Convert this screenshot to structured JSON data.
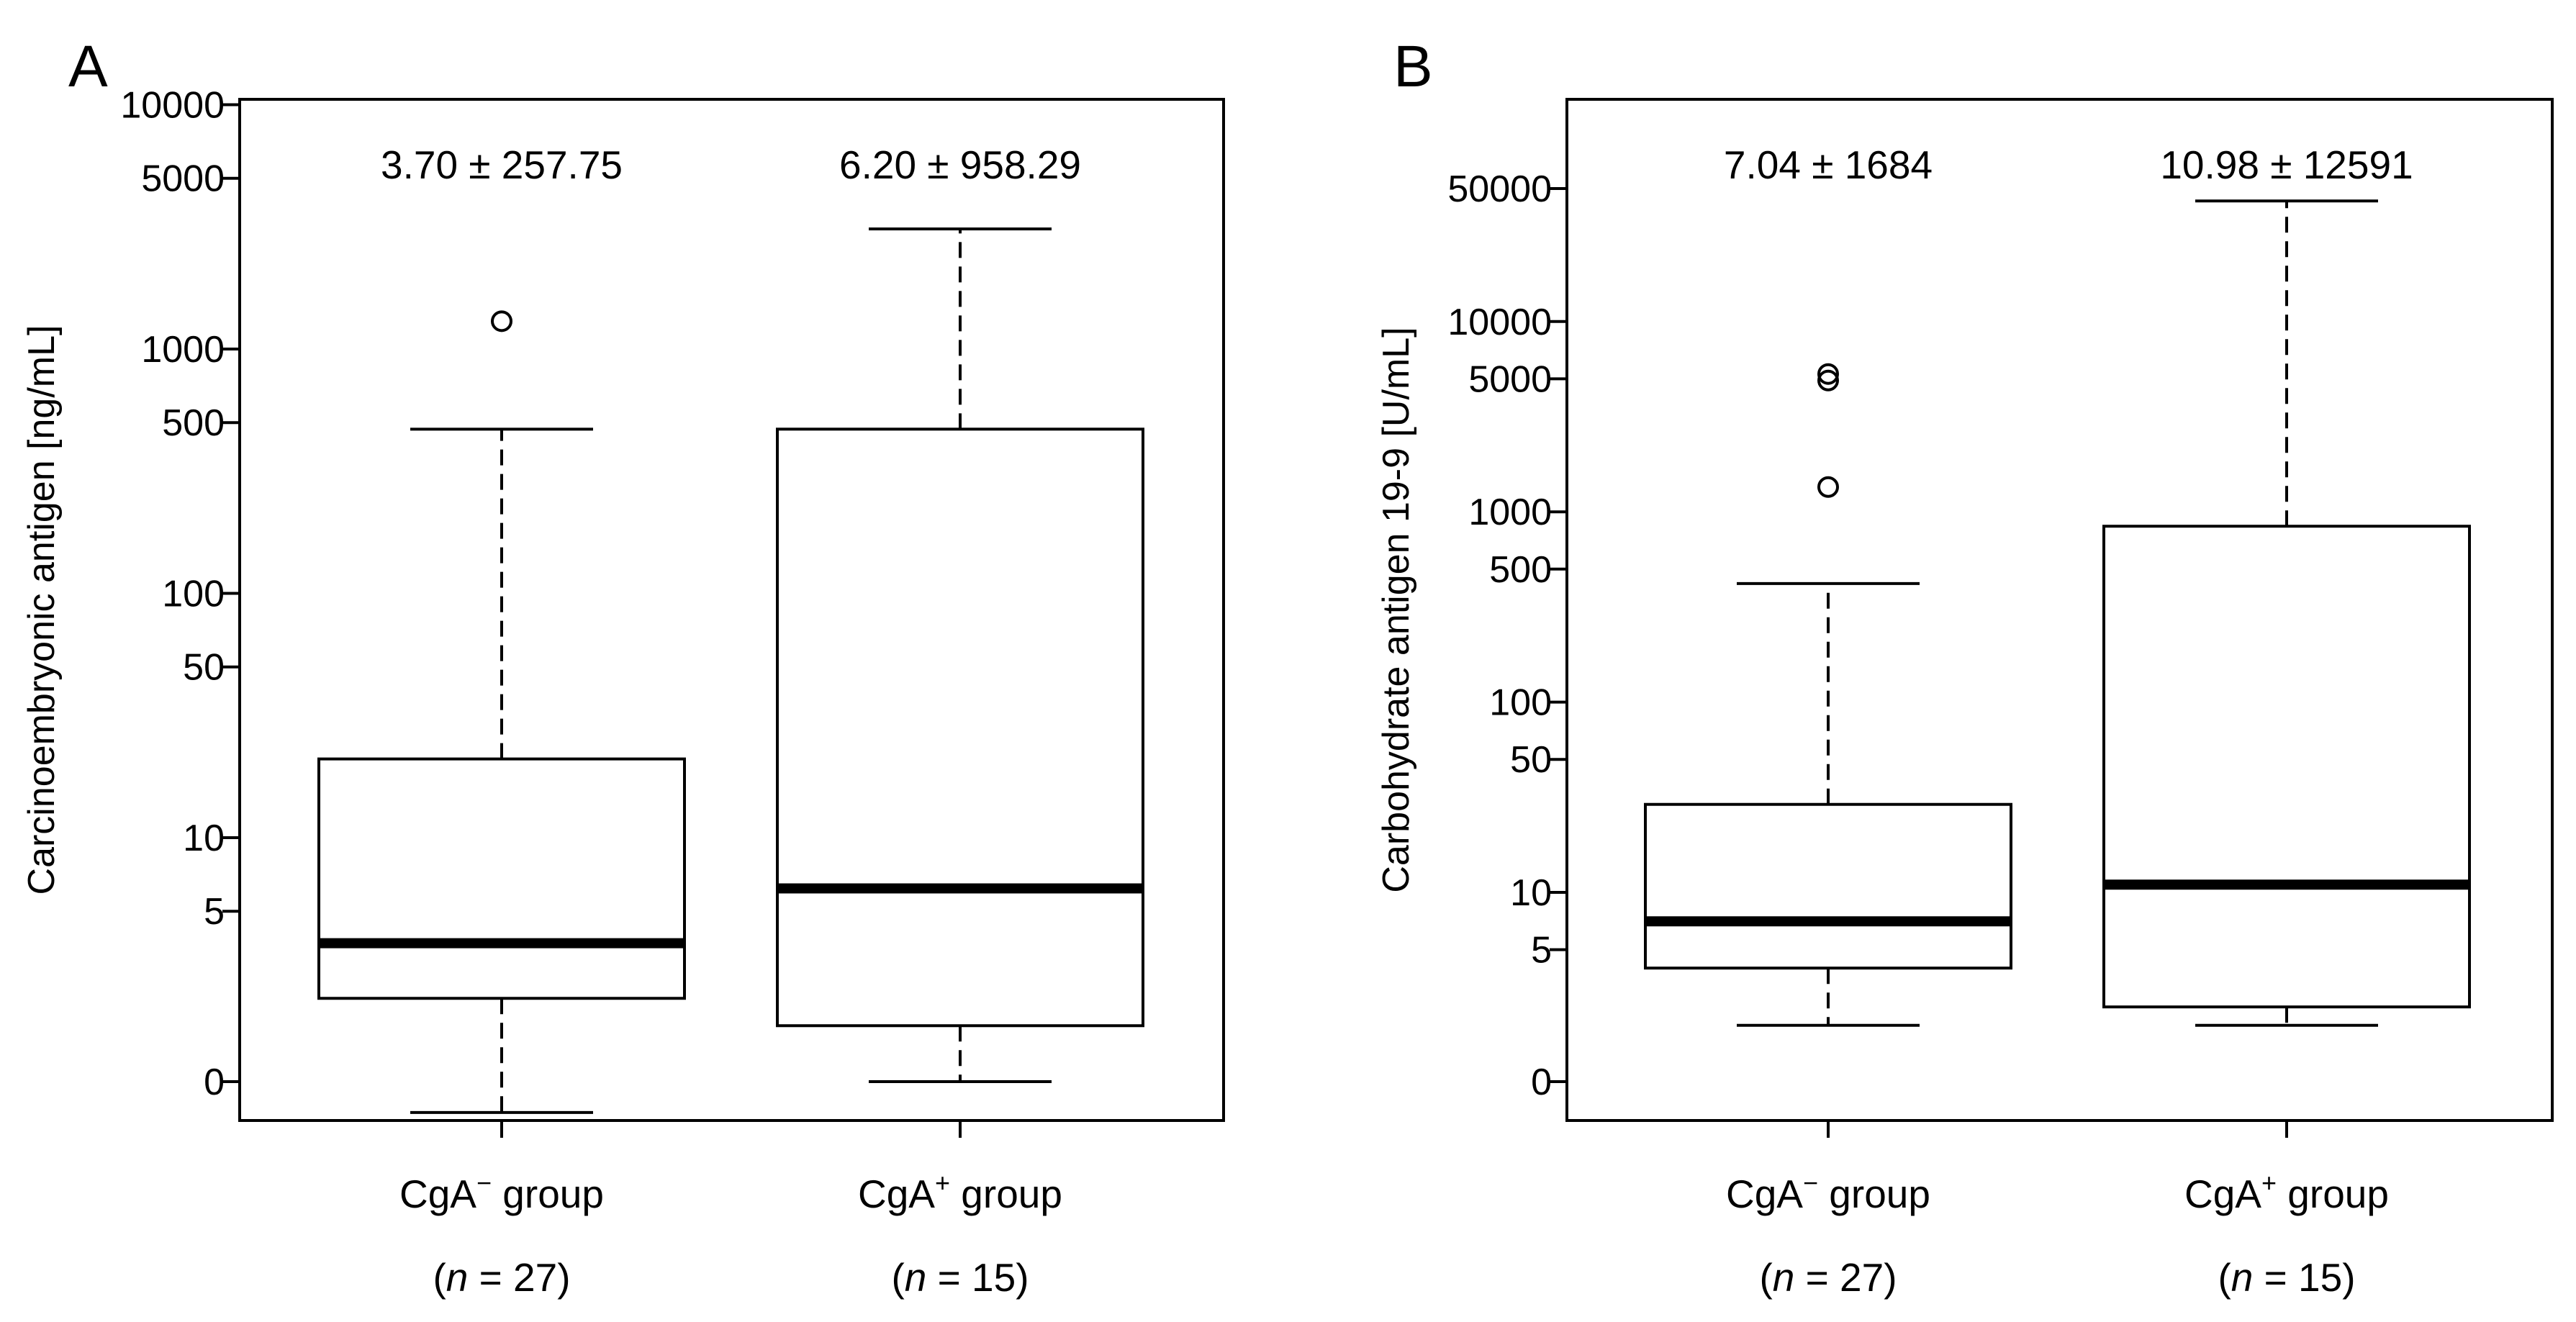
{
  "chart_data": [
    {
      "type": "boxplot",
      "panel_label": "A",
      "ylabel": "Carcinoembryonic antigen [ng/mL]",
      "yscale": "log (zero plotted at baseline)",
      "ylim": [
        0,
        10000
      ],
      "yticks": [
        {
          "value": 0,
          "label": "0"
        },
        {
          "value": 5,
          "label": "5"
        },
        {
          "value": 10,
          "label": "10"
        },
        {
          "value": 50,
          "label": "50"
        },
        {
          "value": 100,
          "label": "100"
        },
        {
          "value": 500,
          "label": "500"
        },
        {
          "value": 1000,
          "label": "1000"
        },
        {
          "value": 5000,
          "label": "5000"
        },
        {
          "value": 10000,
          "label": "10000"
        }
      ],
      "groups": [
        {
          "label_main": "CgA",
          "label_sup": "−",
          "label_rest": " group",
          "n_prefix": "(",
          "n_italic": "n",
          "n_rest": " = 27)",
          "summary": "3.70 ± 257.75",
          "whisker_low": 0.75,
          "q1": 2.2,
          "median": 3.7,
          "q3": 21,
          "whisker_high": 470,
          "outliers": [
            1300
          ]
        },
        {
          "label_main": "CgA",
          "label_sup": "+",
          "label_rest": " group",
          "n_prefix": "(",
          "n_italic": "n",
          "n_rest": " = 15)",
          "summary": "6.20 ± 958.29",
          "whisker_low": 0,
          "q1": 1.7,
          "median": 6.2,
          "q3": 470,
          "whisker_high": 3100,
          "outliers": []
        }
      ]
    },
    {
      "type": "boxplot",
      "panel_label": "B",
      "ylabel": "Carbohydrate antigen 19-9 [U/mL]",
      "yscale": "log (zero plotted at baseline)",
      "ylim": [
        0,
        90000
      ],
      "yticks": [
        {
          "value": 0,
          "label": "0"
        },
        {
          "value": 5,
          "label": "5"
        },
        {
          "value": 10,
          "label": "10"
        },
        {
          "value": 50,
          "label": "50"
        },
        {
          "value": 100,
          "label": "100"
        },
        {
          "value": 500,
          "label": "500"
        },
        {
          "value": 1000,
          "label": "1000"
        },
        {
          "value": 5000,
          "label": "5000"
        },
        {
          "value": 10000,
          "label": "10000"
        },
        {
          "value": 50000,
          "label": "50000"
        }
      ],
      "groups": [
        {
          "label_main": "CgA",
          "label_sup": "−",
          "label_rest": " group",
          "n_prefix": "(",
          "n_italic": "n",
          "n_rest": " = 27)",
          "summary": "7.04 ± 1684",
          "whisker_low": 2,
          "q1": 4,
          "median": 7.04,
          "q3": 29,
          "whisker_high": 420,
          "outliers": [
            1350,
            4900,
            5300
          ]
        },
        {
          "label_main": "CgA",
          "label_sup": "+",
          "label_rest": " group",
          "n_prefix": "(",
          "n_italic": "n",
          "n_rest": " = 15)",
          "summary": "10.98 ± 12591",
          "whisker_low": 2,
          "q1": 2.5,
          "median": 10.98,
          "q3": 840,
          "whisker_high": 43000,
          "outliers": []
        }
      ]
    }
  ]
}
